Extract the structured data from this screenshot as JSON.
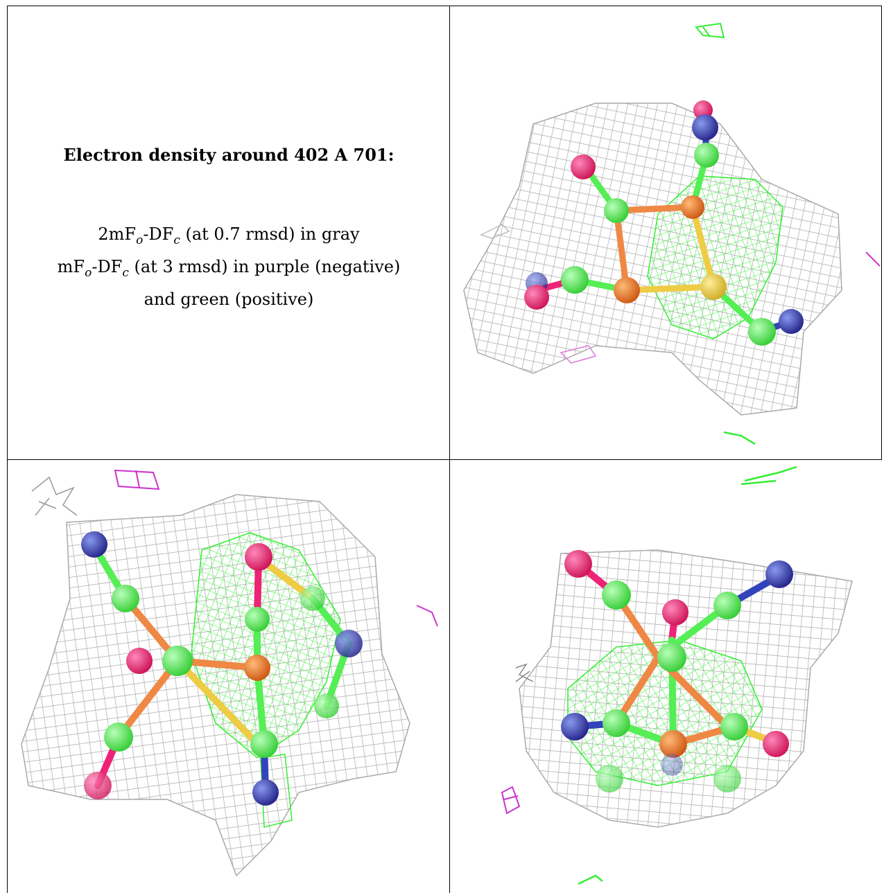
{
  "caption": {
    "title": "Electron density around 402 A 701:",
    "line1": "2mFₒ-DF꜀ (at 0.7 rmsd) in gray",
    "line1_parts": {
      "a": "2mF",
      "b": "o",
      "c": "-DF",
      "d": "c",
      "e": " (at 0.7 rmsd) in gray"
    },
    "line2_parts": {
      "a": "mF",
      "b": "o",
      "c": "-DF",
      "d": "c",
      "e": " (at 3 rmsd) in purple (negative)"
    },
    "line3": "and green (positive)"
  },
  "colors": {
    "mesh_gray": "#a9a9a9",
    "mesh_green": "#33ee33",
    "mesh_purple": "#cc33cc",
    "atom_carbon": "#55ee55",
    "atom_oxygen": "#ee2277",
    "atom_nitrogen": "#3344bb",
    "atom_iron": "#ee7722",
    "atom_sulfur": "#eecc44",
    "border": "#000000"
  },
  "panels": [
    {
      "name": "view-top-right"
    },
    {
      "name": "view-bottom-left"
    },
    {
      "name": "view-bottom-right"
    }
  ]
}
